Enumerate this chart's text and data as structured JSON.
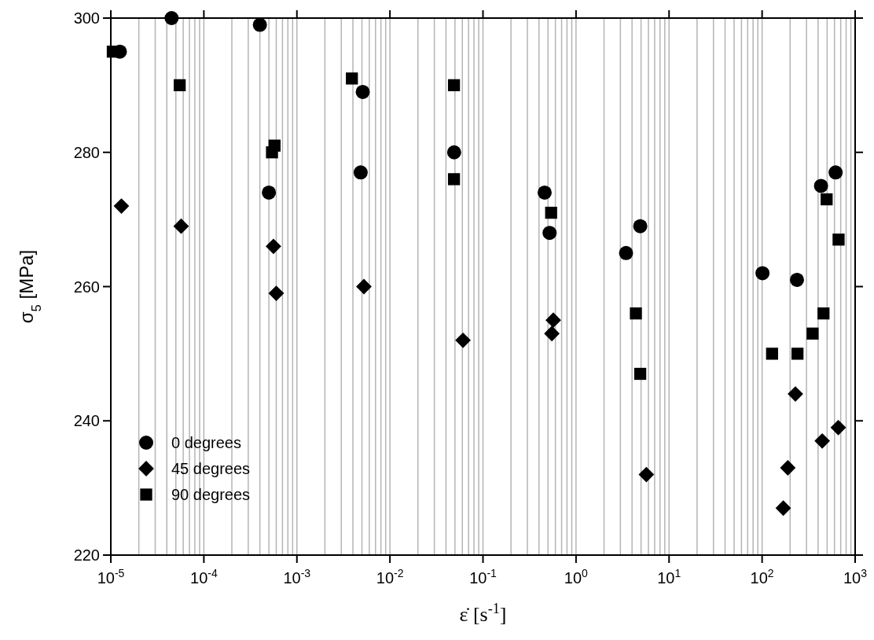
{
  "chart_data": {
    "type": "scatter",
    "xlabel": "ε̇  [s$^{-1}$]",
    "ylabel": "σ$_{5}$ [MPa]",
    "log": "x",
    "grid": "x",
    "legend": "bottom left",
    "xlim": [
      1e-05,
      1000
    ],
    "ylim": [
      220,
      300
    ],
    "yticks": [
      220,
      240,
      260,
      280,
      300
    ],
    "xticks": [
      {
        "value": 1e-05,
        "label": "10$^{-5}$"
      },
      {
        "value": 2e-05,
        "label": null
      },
      {
        "value": 3e-05,
        "label": null
      },
      {
        "value": 4e-05,
        "label": null
      },
      {
        "value": 5e-05,
        "label": null
      },
      {
        "value": 6e-05,
        "label": null
      },
      {
        "value": 7e-05,
        "label": null
      },
      {
        "value": 8e-05,
        "label": null
      },
      {
        "value": 9e-05,
        "label": null
      },
      {
        "value": 0.0001,
        "label": "10$^{-4}$"
      },
      {
        "value": 0.0002,
        "label": null
      },
      {
        "value": 0.0003,
        "label": null
      },
      {
        "value": 0.0004,
        "label": null
      },
      {
        "value": 0.0005,
        "label": null
      },
      {
        "value": 0.0006,
        "label": null
      },
      {
        "value": 0.0007,
        "label": null
      },
      {
        "value": 0.0008,
        "label": null
      },
      {
        "value": 0.0009,
        "label": null
      },
      {
        "value": 0.001,
        "label": "10$^{-3}$"
      },
      {
        "value": 0.002,
        "label": null
      },
      {
        "value": 0.003,
        "label": null
      },
      {
        "value": 0.004,
        "label": null
      },
      {
        "value": 0.005,
        "label": null
      },
      {
        "value": 0.006,
        "label": null
      },
      {
        "value": 0.007,
        "label": null
      },
      {
        "value": 0.008,
        "label": null
      },
      {
        "value": 0.009,
        "label": null
      },
      {
        "value": 0.01,
        "label": "10$^{-2}$"
      },
      {
        "value": 0.02,
        "label": null
      },
      {
        "value": 0.03,
        "label": null
      },
      {
        "value": 0.04,
        "label": null
      },
      {
        "value": 0.05,
        "label": null
      },
      {
        "value": 0.06,
        "label": null
      },
      {
        "value": 0.07,
        "label": null
      },
      {
        "value": 0.08,
        "label": null
      },
      {
        "value": 0.09,
        "label": null
      },
      {
        "value": 0.1,
        "label": "10$^{-1}$"
      },
      {
        "value": 0.2,
        "label": null
      },
      {
        "value": 0.3,
        "label": null
      },
      {
        "value": 0.4,
        "label": null
      },
      {
        "value": 0.5,
        "label": null
      },
      {
        "value": 0.6,
        "label": null
      },
      {
        "value": 0.7,
        "label": null
      },
      {
        "value": 0.8,
        "label": null
      },
      {
        "value": 0.9,
        "label": null
      },
      {
        "value": 1,
        "label": "10$^{0}$"
      },
      {
        "value": 2,
        "label": null
      },
      {
        "value": 3,
        "label": null
      },
      {
        "value": 4,
        "label": null
      },
      {
        "value": 5,
        "label": null
      },
      {
        "value": 6,
        "label": null
      },
      {
        "value": 7,
        "label": null
      },
      {
        "value": 8,
        "label": null
      },
      {
        "value": 9,
        "label": null
      },
      {
        "value": 10,
        "label": "10$^{1}$"
      },
      {
        "value": 20,
        "label": null
      },
      {
        "value": 30,
        "label": null
      },
      {
        "value": 40,
        "label": null
      },
      {
        "value": 50,
        "label": null
      },
      {
        "value": 60,
        "label": null
      },
      {
        "value": 70,
        "label": null
      },
      {
        "value": 80,
        "label": null
      },
      {
        "value": 90,
        "label": null
      },
      {
        "value": 100,
        "label": "10$^{2}$"
      },
      {
        "value": 200,
        "label": null
      },
      {
        "value": 300,
        "label": null
      },
      {
        "value": 400,
        "label": null
      },
      {
        "value": 500,
        "label": null
      },
      {
        "value": 600,
        "label": null
      },
      {
        "value": 700,
        "label": null
      },
      {
        "value": 800,
        "label": null
      },
      {
        "value": 900,
        "label": null
      },
      {
        "value": 1000,
        "label": "10$^{3}$"
      }
    ],
    "series": [
      {
        "name": "0 degrees",
        "color": "#000000",
        "marker": "circle",
        "x": [
          1.25e-05,
          4.5e-05,
          0.0004,
          0.0005,
          0.0051,
          0.00485,
          0.049,
          0.46,
          0.52,
          3.45,
          4.9,
          101,
          237,
          430,
          617
        ],
        "values": [
          295,
          300,
          299,
          274,
          289,
          277,
          280,
          274,
          268,
          265,
          269,
          262,
          261,
          275,
          277
        ]
      },
      {
        "name": "45 degrees",
        "color": "#000000",
        "marker": "diamond",
        "x": [
          1.3e-05,
          5.7e-05,
          0.00056,
          0.0006,
          0.00525,
          0.061,
          0.57,
          0.55,
          5.7,
          169,
          189,
          228,
          443,
          659
        ],
        "values": [
          272,
          269,
          266,
          259,
          260,
          252,
          255,
          253,
          232,
          227,
          233,
          244,
          237,
          239
        ]
      },
      {
        "name": "90 degrees",
        "color": "#000000",
        "marker": "square",
        "x": [
          1.05e-05,
          5.5e-05,
          0.000575,
          0.00054,
          0.0039,
          0.0488,
          0.0488,
          0.54,
          4.4,
          4.9,
          128,
          240,
          349,
          457,
          494,
          664
        ],
        "values": [
          295,
          290,
          281,
          280,
          291,
          290,
          276,
          271,
          256,
          247,
          250,
          250,
          253,
          256,
          273,
          267
        ]
      }
    ]
  }
}
